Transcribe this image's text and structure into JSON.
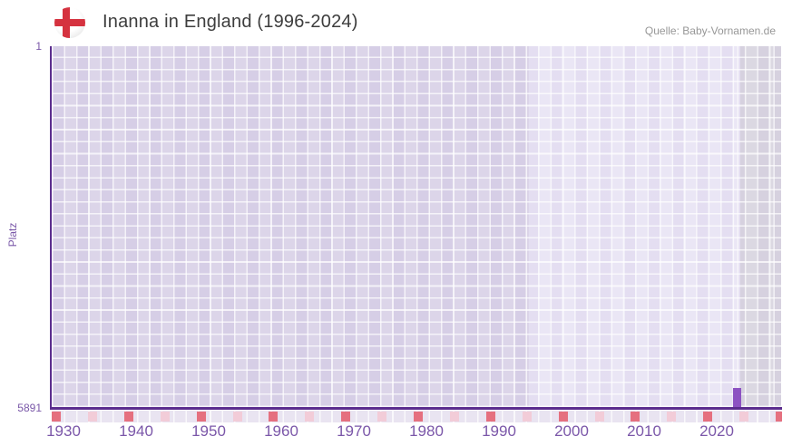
{
  "header": {
    "title": "Inanna in England (1996-2024)",
    "source": "Quelle: Baby-Vornamen.de",
    "flag_icon": "england-flag"
  },
  "chart_data": {
    "type": "bar",
    "title": "Inanna in England (1996-2024)",
    "ylabel": "Platz",
    "xlabel": "",
    "y_axis": {
      "top_tick": "1",
      "bottom_tick": "5891",
      "min": 1,
      "max": 5891,
      "inverted": true
    },
    "x_axis": {
      "tick_labels": [
        "1930",
        "1940",
        "1950",
        "1960",
        "1970",
        "1980",
        "1990",
        "2000",
        "2010",
        "2020"
      ],
      "range_years": [
        1928,
        2028
      ]
    },
    "data_period": {
      "start_year": 1996,
      "end_year": 2024
    },
    "series": [
      {
        "name": "Inanna",
        "points": [
          {
            "year": 2023,
            "rank": 5891
          }
        ]
      }
    ],
    "grid": true,
    "legend_position": "none",
    "colors": {
      "bar": "#8c52c2",
      "axis_line": "#5b2d8e",
      "tick_text": "#7a58a8",
      "title_text": "#3d3d3d",
      "source_text": "#979797",
      "region_past": "#dcd5e9",
      "region_data_period": "#eae6f5",
      "region_future": "#dbd8e2",
      "marker_decade": "#e5707f",
      "marker_half_decade": "#f2ccd8",
      "flag_cross": "#d5323f"
    }
  }
}
